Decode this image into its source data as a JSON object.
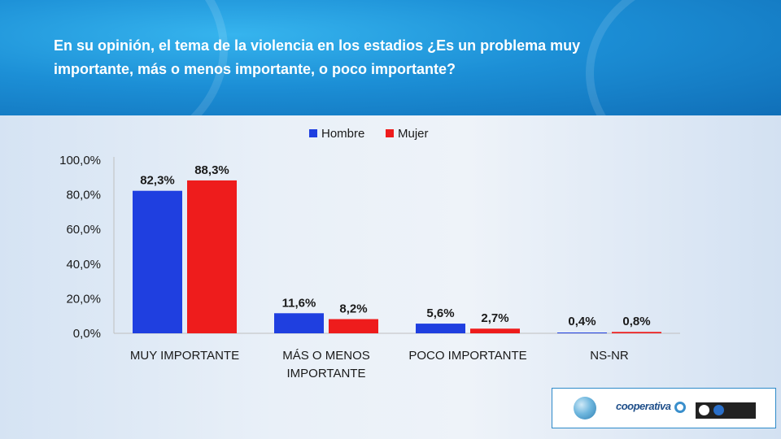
{
  "header": {
    "title_line1": "En su opinión, el tema de la violencia en los estadios ¿Es un problema muy",
    "title_line2": "importante, más o menos importante, o poco importante?"
  },
  "colors": {
    "hombre": "#1f3fe0",
    "mujer": "#ee1c1c",
    "header_bg": "#1c8fd6"
  },
  "chart_data": {
    "type": "bar",
    "categories": [
      [
        "MUY IMPORTANTE"
      ],
      [
        "MÁS O MENOS",
        "IMPORTANTE"
      ],
      [
        "POCO IMPORTANTE"
      ],
      [
        "NS-NR"
      ]
    ],
    "series": [
      {
        "name": "Hombre",
        "values": [
          82.3,
          11.6,
          5.6,
          0.4
        ],
        "labels": [
          "82,3%",
          "11,6%",
          "5,6%",
          "0,4%"
        ]
      },
      {
        "name": "Mujer",
        "values": [
          88.3,
          8.2,
          2.7,
          0.8
        ],
        "labels": [
          "88,3%",
          "8,2%",
          "2,7%",
          "0,8%"
        ]
      }
    ],
    "y_ticks": [
      "0,0%",
      "20,0%",
      "40,0%",
      "60,0%",
      "80,0%",
      "100,0%"
    ],
    "ylim": [
      0,
      100
    ],
    "legend_position": "top-center",
    "grid": false
  },
  "logos": {
    "radio_name": "cooperativa"
  }
}
